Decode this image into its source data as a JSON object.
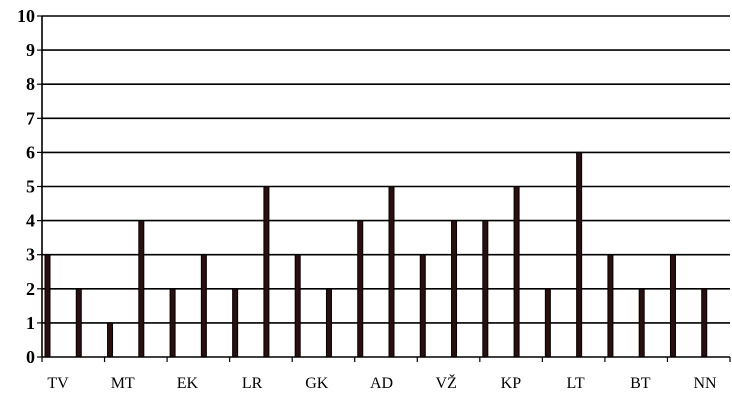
{
  "chart_data": {
    "type": "bar",
    "categories": [
      "TV",
      "MT",
      "EK",
      "LR",
      "GK",
      "AD",
      "VŽ",
      "KP",
      "LT",
      "BT",
      "NN"
    ],
    "tick_categories": [
      "TV",
      "MT",
      "EK",
      "LR",
      "GK",
      "AD",
      "VŽ",
      "KP",
      "LT",
      "BT",
      "NN"
    ],
    "series": [
      {
        "values": [
          3,
          1,
          2,
          2,
          3,
          4,
          3,
          4,
          2,
          3,
          3
        ]
      },
      {
        "values": [
          2,
          4,
          3,
          5,
          2,
          5,
          4,
          5,
          6,
          2,
          2
        ]
      }
    ],
    "ylim": [
      0,
      10
    ],
    "yticks": [
      "0",
      "1",
      "2",
      "3",
      "4",
      "5",
      "6",
      "7",
      "8",
      "9",
      "10"
    ],
    "grid": true,
    "legend": "none",
    "colors": {
      "bar": "#2b0f0f",
      "grid": "#000000",
      "background": "#ffffff"
    },
    "title": "",
    "xlabel": "",
    "ylabel": ""
  }
}
